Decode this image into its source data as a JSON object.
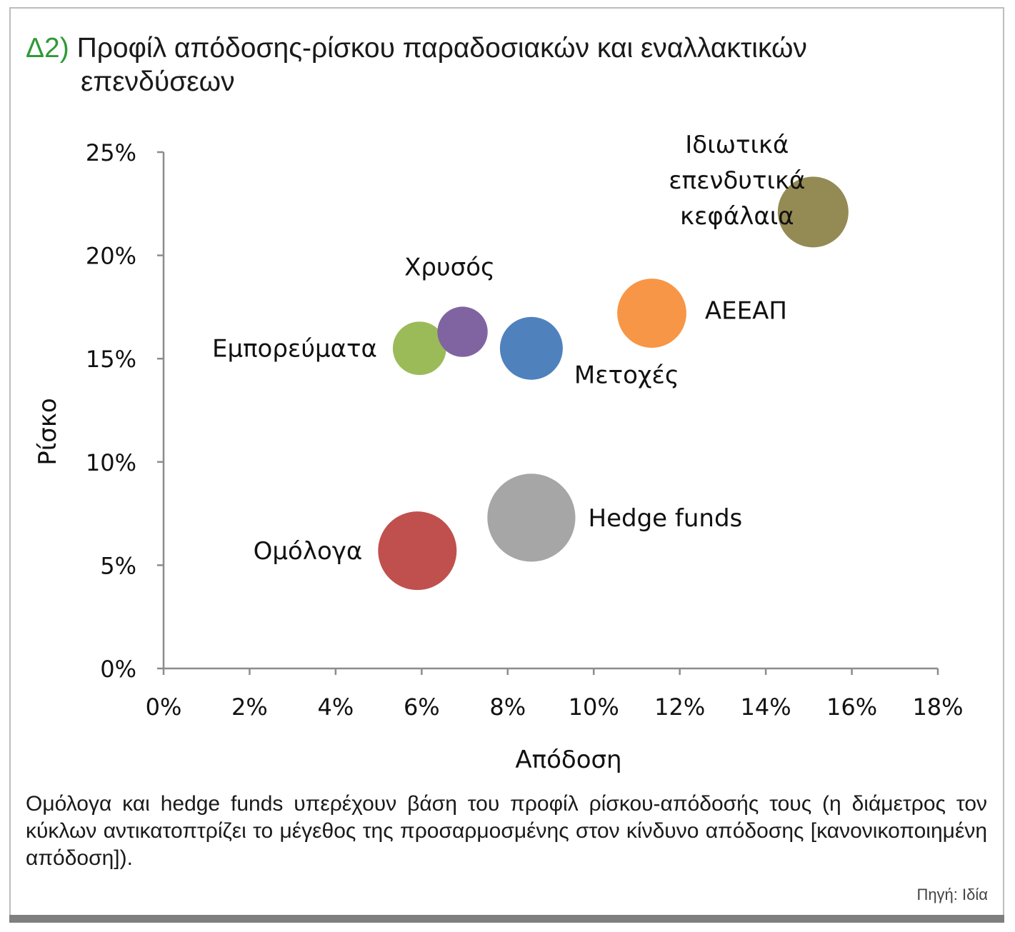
{
  "figure": {
    "number": "Δ2)",
    "title_line1": "Προφίλ απόδοσης-ρίσκου παραδοσιακών και εναλλακτικών",
    "title_line2": "επενδύσεων",
    "caption": "Ομόλογα και hedge funds υπερέχουν βάση του προφίλ ρίσκου-απόδοσής τους (η διάμετρος τον κύκλων αντικατοπτρίζει το μέγεθος της προσαρμοσμένης στον κίνδυνο απόδοσης [κανονικοποιημένη απόδοση]).",
    "source": "Πηγή: Ιδία"
  },
  "chart_data": {
    "type": "scatter",
    "subtype": "bubble",
    "xlabel": "Απόδοση",
    "ylabel": "Ρίσκο",
    "xlim": [
      0,
      18
    ],
    "ylim": [
      0,
      25
    ],
    "x_ticks": [
      "0%",
      "2%",
      "4%",
      "6%",
      "8%",
      "10%",
      "12%",
      "14%",
      "16%",
      "18%"
    ],
    "y_ticks": [
      "0%",
      "5%",
      "10%",
      "15%",
      "20%",
      "25%"
    ],
    "grid": false,
    "legend": "none",
    "points": [
      {
        "name": "Ομόλογα",
        "x": 5.9,
        "y": 5.7,
        "size": 1.0,
        "color": "#c0504d",
        "label_lines": [
          "Ομόλογα"
        ],
        "label_pos": "left"
      },
      {
        "name": "Hedge funds",
        "x": 8.55,
        "y": 7.3,
        "size": 1.12,
        "color": "#a6a6a6",
        "label_lines": [
          "Hedge funds"
        ],
        "label_pos": "right"
      },
      {
        "name": "Εμπορεύματα",
        "x": 5.95,
        "y": 15.5,
        "size": 0.68,
        "color": "#9bbb59",
        "label_lines": [
          "Εμπορεύματα"
        ],
        "label_pos": "left"
      },
      {
        "name": "Χρυσός",
        "x": 6.95,
        "y": 16.3,
        "size": 0.64,
        "color": "#8064a2",
        "label_lines": [
          "Χρυσός"
        ],
        "label_pos": "top"
      },
      {
        "name": "Μετοχές",
        "x": 8.55,
        "y": 15.5,
        "size": 0.8,
        "color": "#4f81bd",
        "label_lines": [
          "Μετοχές"
        ],
        "label_pos": "bottom-right"
      },
      {
        "name": "ΑΕΕΑΠ",
        "x": 11.35,
        "y": 17.2,
        "size": 0.88,
        "color": "#f79646",
        "label_lines": [
          "ΑΕΕΑΠ"
        ],
        "label_pos": "right"
      },
      {
        "name": "Ιδιωτικά επενδυτικά κεφάλαια",
        "x": 15.1,
        "y": 22.1,
        "size": 0.9,
        "color": "#948a54",
        "label_lines": [
          "Ιδιωτικά",
          "επενδυτικά",
          "κεφάλαια"
        ],
        "label_pos": "left"
      }
    ]
  }
}
